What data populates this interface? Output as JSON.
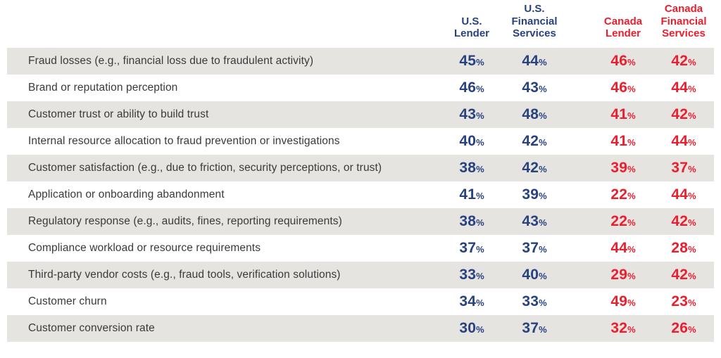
{
  "table": {
    "columns": [
      {
        "id": "us-lender",
        "label": "U.S.\nLender",
        "color": "#28427f"
      },
      {
        "id": "us-financial-services",
        "label": "U.S.\nFinancial\nServices",
        "color": "#28427f"
      },
      {
        "id": "canada-lender",
        "label": "Canada\nLender",
        "color": "#ec1e2d"
      },
      {
        "id": "canada-financial-services",
        "label": "Canada\nFinancial\nServices",
        "color": "#ec1e2d"
      }
    ],
    "unit": "%",
    "rows": [
      {
        "label": "Fraud losses (e.g., financial loss due to fraudulent activity)",
        "values": [
          45,
          44,
          46,
          42
        ]
      },
      {
        "label": "Brand or reputation perception",
        "values": [
          46,
          43,
          46,
          44
        ]
      },
      {
        "label": "Customer trust or ability to build trust",
        "values": [
          43,
          48,
          41,
          42
        ]
      },
      {
        "label": "Internal resource allocation to fraud prevention or investigations",
        "values": [
          40,
          42,
          41,
          44
        ]
      },
      {
        "label": "Customer satisfaction (e.g., due to friction, security perceptions, or trust)",
        "values": [
          38,
          42,
          39,
          37
        ]
      },
      {
        "label": "Application or onboarding abandonment",
        "values": [
          41,
          39,
          22,
          44
        ]
      },
      {
        "label": "Regulatory response (e.g., audits, fines, reporting requirements)",
        "values": [
          38,
          43,
          22,
          42
        ]
      },
      {
        "label": "Compliance workload or resource requirements",
        "values": [
          37,
          37,
          44,
          28
        ]
      },
      {
        "label": "Third-party vendor costs (e.g., fraud tools, verification solutions)",
        "values": [
          33,
          40,
          29,
          42
        ]
      },
      {
        "label": "Customer churn",
        "values": [
          34,
          33,
          49,
          23
        ]
      },
      {
        "label": "Customer conversion rate",
        "values": [
          30,
          37,
          32,
          26
        ]
      }
    ]
  },
  "colors": {
    "navy": "#28427f",
    "red": "#ec1e2d",
    "stripe_gray": "#e6e4e1",
    "label_text": "#3a3a3a",
    "background": "#ffffff"
  },
  "chart_data": {
    "type": "table",
    "title": "",
    "unit": "%",
    "categories": [
      "Fraud losses (e.g., financial loss due to fraudulent activity)",
      "Brand or reputation perception",
      "Customer trust or ability to build trust",
      "Internal resource allocation to fraud prevention or investigations",
      "Customer satisfaction (e.g., due to friction, security perceptions, or trust)",
      "Application or onboarding abandonment",
      "Regulatory response (e.g., audits, fines, reporting requirements)",
      "Compliance workload or resource requirements",
      "Third-party vendor costs (e.g., fraud tools, verification solutions)",
      "Customer churn",
      "Customer conversion rate"
    ],
    "series": [
      {
        "name": "U.S. Lender",
        "values": [
          45,
          46,
          43,
          40,
          38,
          41,
          38,
          37,
          33,
          34,
          30
        ]
      },
      {
        "name": "U.S. Financial Services",
        "values": [
          44,
          43,
          48,
          42,
          42,
          39,
          43,
          37,
          40,
          33,
          37
        ]
      },
      {
        "name": "Canada Lender",
        "values": [
          46,
          46,
          41,
          41,
          39,
          22,
          22,
          44,
          29,
          49,
          32
        ]
      },
      {
        "name": "Canada Financial Services",
        "values": [
          42,
          44,
          42,
          44,
          37,
          44,
          42,
          28,
          42,
          23,
          26
        ]
      }
    ],
    "layout": {
      "row_striping": true,
      "legend_position": "column-headers",
      "grid": false
    }
  }
}
